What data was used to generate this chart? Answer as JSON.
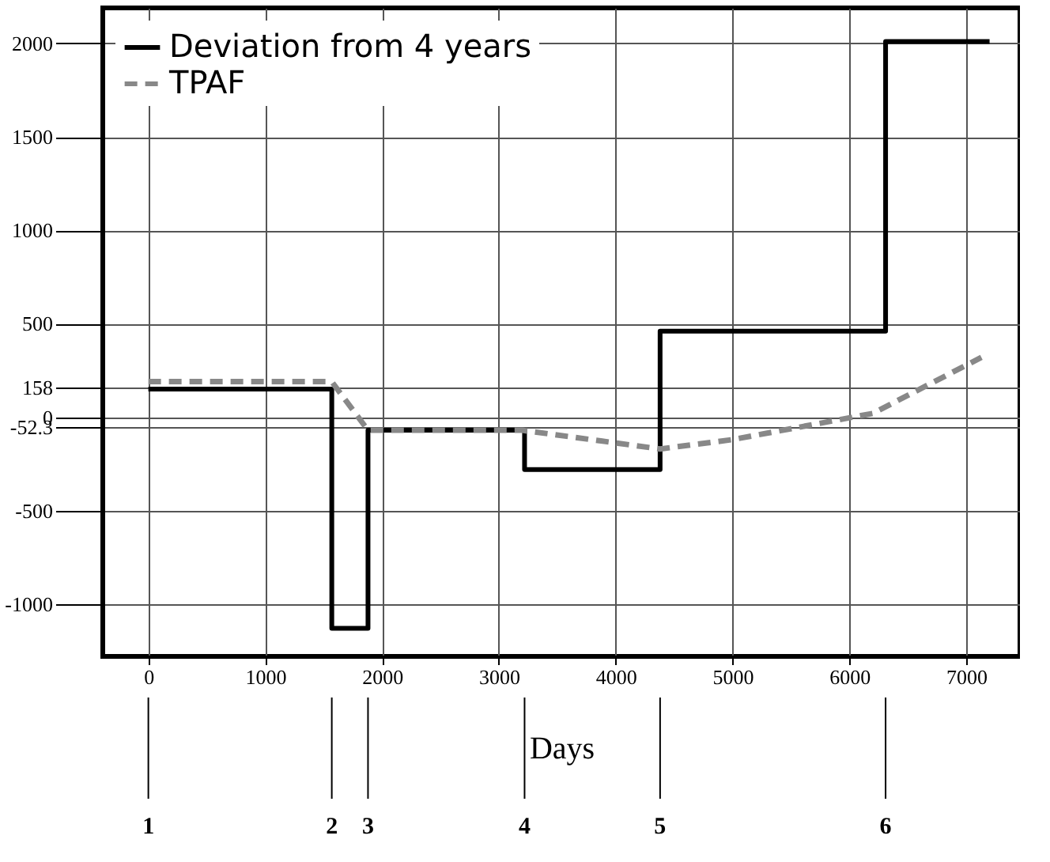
{
  "chart_data": {
    "type": "step",
    "xlabel": "Days",
    "xlim": [
      -390,
      7460
    ],
    "ylim": [
      -1280,
      2190
    ],
    "xticks": [
      0,
      1000,
      2000,
      3000,
      4000,
      5000,
      6000,
      7000
    ],
    "yticks": [
      -1000,
      -500,
      -52.3,
      0,
      158,
      500,
      1000,
      1500,
      2000
    ],
    "grid": true,
    "legend": "top left",
    "series": [
      {
        "name": "Deviation from 4 years",
        "color": "#000000",
        "line_style": "solid",
        "x": [
          0,
          1570,
          1880,
          3220,
          4380,
          6310,
          7200
        ],
        "values": [
          150,
          -1130,
          -70,
          -280,
          460,
          2010,
          2010
        ]
      },
      {
        "name": "TPAF",
        "type": "line",
        "color": "#888888",
        "line_style": "dashed",
        "x": [
          0,
          1570,
          1880,
          3200,
          4380,
          5000,
          5600,
          6200,
          7130
        ],
        "values": [
          190,
          190,
          -70,
          -70,
          -170,
          -120,
          -50,
          20,
          320
        ]
      }
    ],
    "annotations": [
      {
        "text": "1",
        "x": 0
      },
      {
        "text": "2",
        "x": 1570
      },
      {
        "text": "3",
        "x": 1880
      },
      {
        "text": "4",
        "x": 3220
      },
      {
        "text": "5",
        "x": 4380
      },
      {
        "text": "6",
        "x": 6310
      }
    ]
  }
}
